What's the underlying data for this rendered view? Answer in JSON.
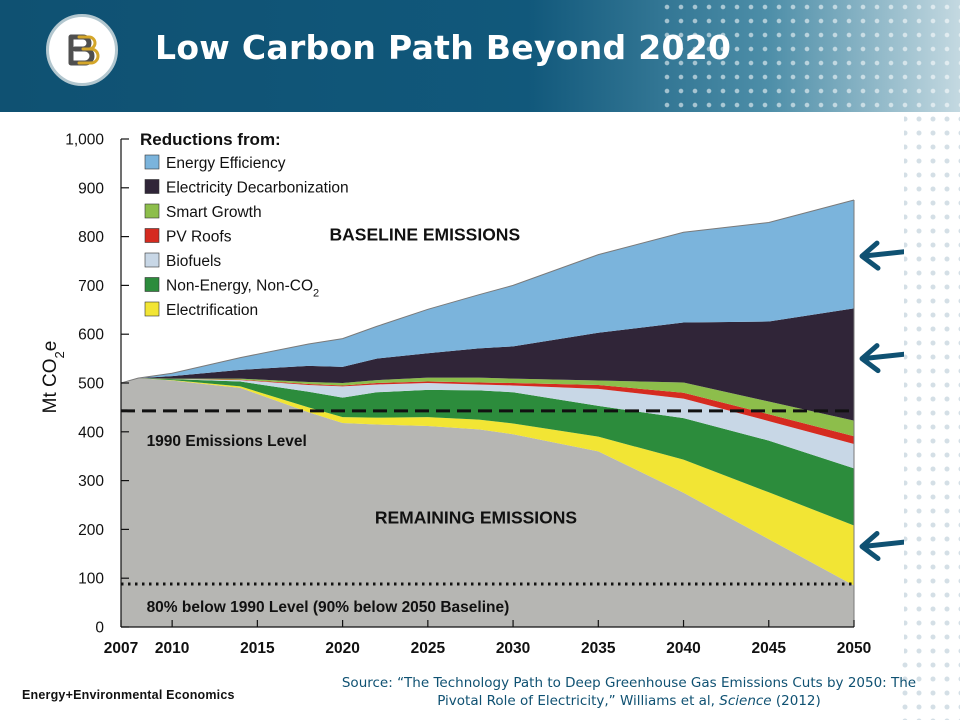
{
  "slide": {
    "title": "Low Carbon Path Beyond 2020",
    "source_prefix": "Source: “The Technology Path to Deep Greenhouse Gas Emissions Cuts by 2050: The Pivotal Role of Electricity,” Williams et al, ",
    "source_journal": "Science",
    "source_suffix": " (2012)",
    "brand": "Energy+Environmental Economics",
    "logo_text": "E3",
    "colors": {
      "header": "#0f5172",
      "arrow": "#0f5172",
      "title": "#ffffff"
    }
  },
  "chart_data": {
    "type": "area",
    "stacked": true,
    "ylabel": "Mt CO2e",
    "ylim": [
      0,
      1000
    ],
    "y_ticks": [
      0,
      100,
      200,
      300,
      400,
      500,
      600,
      700,
      800,
      900,
      1000
    ],
    "y_tick_labels": [
      "0",
      "100",
      "200",
      "300",
      "400",
      "500",
      "600",
      "700",
      "800",
      "900",
      "1,000"
    ],
    "x_ticks": [
      2007,
      2010,
      2015,
      2020,
      2025,
      2030,
      2035,
      2040,
      2045,
      2050
    ],
    "xlim": [
      2007,
      2050
    ],
    "x": [
      2007,
      2008,
      2010,
      2014,
      2018,
      2020,
      2022,
      2025,
      2028,
      2030,
      2035,
      2040,
      2045,
      2050
    ],
    "legend_title": "Reductions from:",
    "legend_position": "top-left",
    "remaining": {
      "name": "REMAINING EMISSIONS",
      "color": "#b6b6b3",
      "values": [
        500,
        510,
        505,
        490,
        440,
        418,
        415,
        412,
        405,
        395,
        360,
        275,
        180,
        85
      ]
    },
    "series": [
      {
        "name": "Electrification",
        "color": "#f2e534",
        "values": [
          0,
          0,
          1,
          3,
          10,
          12,
          14,
          18,
          20,
          22,
          30,
          68,
          96,
          123
        ]
      },
      {
        "name": "Non-Energy, Non-CO",
        "name_subscript": "2",
        "color": "#2c8c3c",
        "values": [
          0,
          0,
          2,
          10,
          32,
          40,
          52,
          56,
          60,
          64,
          63,
          85,
          106,
          117
        ]
      },
      {
        "name": "Biofuels",
        "color": "#c8d7e6",
        "values": [
          0,
          0,
          0,
          3,
          14,
          23,
          16,
          14,
          12,
          14,
          35,
          40,
          40,
          50
        ]
      },
      {
        "name": "PV Roofs",
        "color": "#d52b20",
        "values": [
          0,
          0,
          0,
          1,
          2,
          2,
          3,
          3,
          4,
          5,
          8,
          12,
          14,
          16
        ]
      },
      {
        "name": "Smart Growth",
        "color": "#8dbe4b",
        "values": [
          0,
          0,
          1,
          2,
          4,
          5,
          6,
          8,
          10,
          9,
          9,
          21,
          26,
          32
        ]
      },
      {
        "name": "Electricity Decarbonization",
        "color": "#302538",
        "values": [
          0,
          0,
          5,
          18,
          33,
          33,
          44,
          50,
          60,
          66,
          98,
          123,
          164,
          230
        ]
      },
      {
        "name": "Energy Efficiency",
        "color": "#7bb4dc",
        "values": [
          0,
          0,
          6,
          25,
          45,
          58,
          66,
          90,
          110,
          125,
          160,
          185,
          203,
          222
        ]
      }
    ],
    "reference_lines": [
      {
        "name": "1990 Emissions Level",
        "value": 443,
        "style": "dashed"
      },
      {
        "name": "80% below 1990 Level (90% below 2050 Baseline)",
        "value": 88,
        "style": "dotted"
      }
    ],
    "annotations": [
      {
        "text": "BASELINE EMISSIONS",
        "x": 2025,
        "y": 800
      },
      {
        "text": "REMAINING EMISSIONS",
        "x": 2028,
        "y": 220
      }
    ],
    "arrows": [
      {
        "x": 2050,
        "y": 760
      },
      {
        "x": 2050,
        "y": 550
      },
      {
        "x": 2050,
        "y": 165
      }
    ]
  }
}
